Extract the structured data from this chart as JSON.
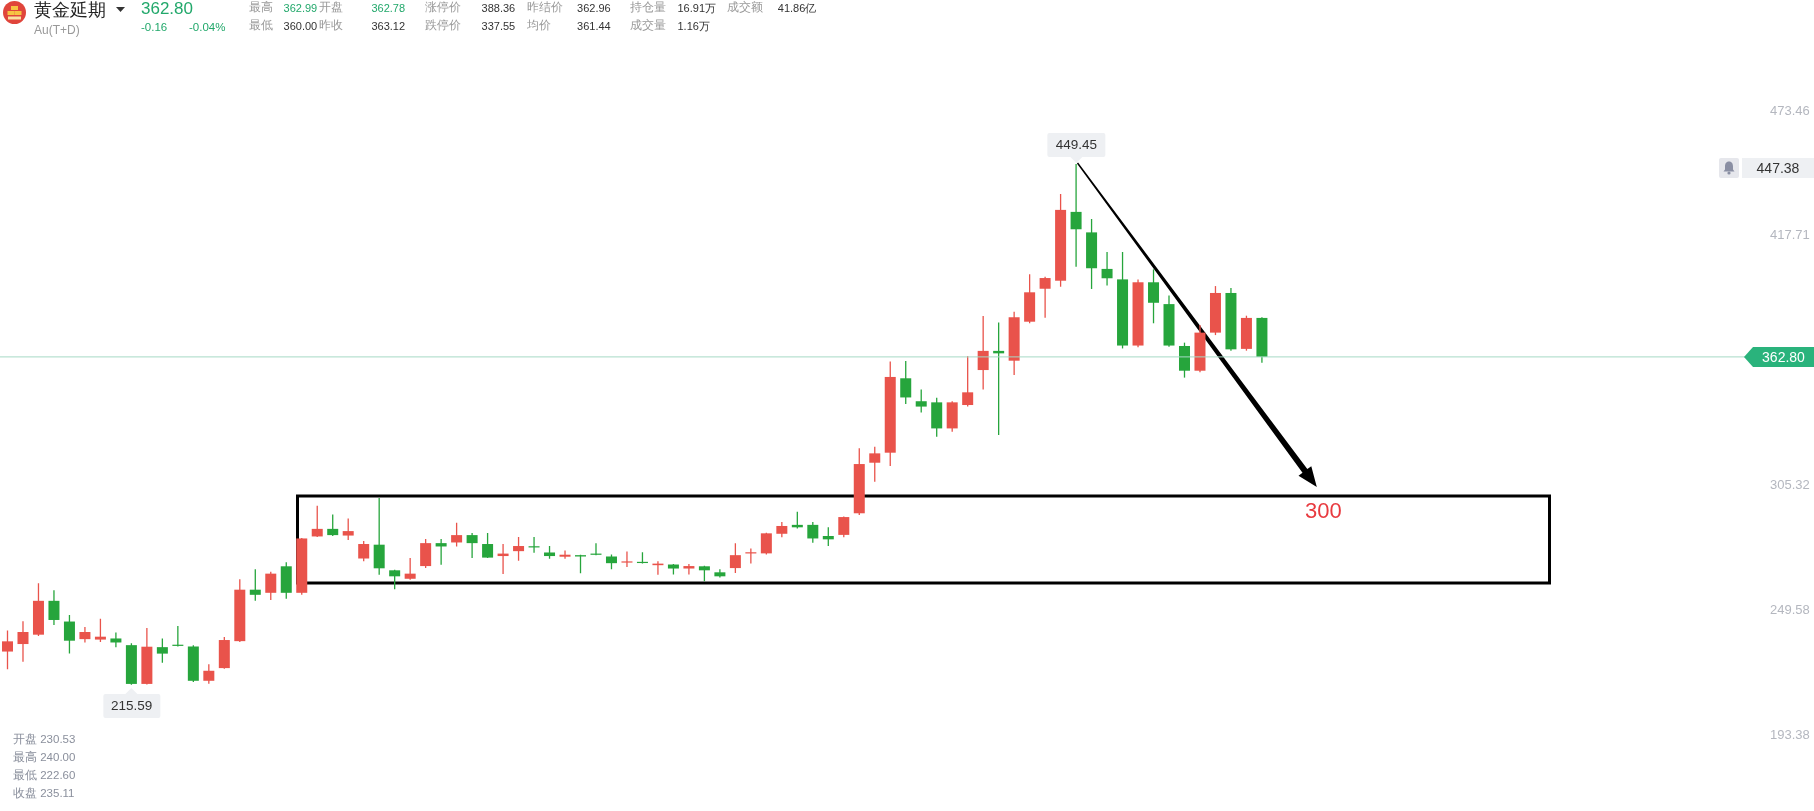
{
  "chart_data": {
    "type": "candlestick",
    "title": "黄金延期",
    "subtitle": "Au(T+D)",
    "categories": [
      null,
      null,
      null,
      null,
      null,
      null,
      null,
      null,
      null,
      null,
      null,
      null,
      null,
      null,
      null,
      null,
      null,
      null,
      null,
      null,
      null,
      null,
      null,
      null,
      null,
      null,
      null,
      null,
      null,
      null,
      null,
      null,
      null,
      null,
      null,
      null,
      null,
      null,
      null,
      null,
      null,
      null,
      null,
      null,
      null,
      null,
      null,
      null,
      null,
      null,
      null,
      null,
      null,
      null,
      null,
      null,
      null,
      null,
      null,
      null,
      null,
      null,
      null,
      null,
      null,
      null,
      null,
      null,
      null,
      null,
      null,
      null,
      null,
      null,
      null,
      null,
      null,
      null,
      null,
      null,
      null,
      null,
      null,
      null,
      null,
      null,
      null,
      null,
      null,
      null,
      null,
      null,
      null,
      null,
      null,
      null,
      null,
      null,
      null,
      null,
      null,
      null,
      null,
      null,
      null,
      null,
      null,
      null,
      null,
      null,
      null,
      null,
      null
    ],
    "ohlc": [
      [
        230.53,
        240.0,
        222.6,
        235.11
      ],
      [
        233.9,
        244.1,
        225.9,
        239.3
      ],
      [
        238.1,
        261.2,
        237.5,
        253.3
      ],
      [
        253.3,
        258.0,
        242.5,
        244.7
      ],
      [
        244.0,
        246.9,
        229.6,
        235.4
      ],
      [
        236.1,
        241.5,
        234.6,
        239.3
      ],
      [
        235.9,
        245.2,
        234.8,
        237.2
      ],
      [
        236.4,
        239.1,
        232.5,
        234.6
      ],
      [
        233.4,
        234.3,
        215.59,
        216.0
      ],
      [
        216.0,
        241.1,
        215.7,
        232.7
      ],
      [
        232.5,
        236.4,
        225.5,
        229.6
      ],
      [
        233.6,
        242.0,
        232.8,
        233.2
      ],
      [
        232.8,
        233.4,
        216.9,
        217.4
      ],
      [
        217.4,
        224.8,
        216.1,
        221.9
      ],
      [
        223.1,
        237.1,
        222.8,
        235.7
      ],
      [
        235.2,
        263.0,
        234.8,
        258.3
      ],
      [
        258.3,
        267.5,
        253.3,
        256.0
      ],
      [
        256.9,
        266.4,
        253.7,
        265.5
      ],
      [
        268.8,
        270.6,
        254.2,
        256.9
      ],
      [
        256.9,
        281.5,
        256.0,
        281.3
      ],
      [
        282.2,
        296.0,
        281.9,
        285.6
      ],
      [
        285.6,
        292.1,
        282.4,
        282.8
      ],
      [
        282.6,
        290.3,
        280.6,
        284.6
      ],
      [
        272.3,
        280.2,
        271.1,
        278.8
      ],
      [
        278.5,
        299.5,
        265.0,
        267.9
      ],
      [
        267.0,
        267.3,
        258.5,
        264.3
      ],
      [
        263.2,
        272.5,
        262.8,
        265.5
      ],
      [
        268.9,
        281.0,
        268.0,
        279.2
      ],
      [
        279.2,
        281.0,
        269.5,
        277.7
      ],
      [
        279.5,
        288.3,
        277.7,
        282.8
      ],
      [
        282.8,
        283.7,
        272.5,
        279.2
      ],
      [
        278.8,
        283.8,
        272.5,
        272.7
      ],
      [
        273.4,
        278.8,
        265.3,
        274.5
      ],
      [
        275.6,
        281.9,
        271.3,
        277.9
      ],
      [
        277.8,
        281.9,
        274.9,
        277.5
      ],
      [
        275.0,
        277.9,
        272.2,
        273.4
      ],
      [
        273.1,
        275.9,
        272.2,
        274.0
      ],
      [
        273.8,
        274.0,
        265.7,
        273.2
      ],
      [
        274.5,
        279.2,
        273.8,
        274.0
      ],
      [
        273.2,
        274.1,
        267.5,
        270.2
      ],
      [
        270.6,
        275.4,
        268.5,
        271.0
      ],
      [
        270.8,
        275.1,
        270.1,
        270.6
      ],
      [
        269.3,
        271.1,
        265.0,
        270.0
      ],
      [
        269.6,
        269.8,
        265.1,
        267.8
      ],
      [
        267.8,
        269.8,
        265.1,
        268.9
      ],
      [
        268.8,
        269.1,
        262.1,
        267.0
      ],
      [
        266.1,
        267.5,
        263.8,
        264.3
      ],
      [
        268.0,
        279.1,
        265.8,
        273.8
      ],
      [
        274.7,
        276.8,
        270.1,
        275.1
      ],
      [
        274.6,
        283.9,
        274.1,
        283.6
      ],
      [
        283.4,
        288.7,
        281.8,
        286.9
      ],
      [
        287.4,
        293.3,
        285.8,
        286.3
      ],
      [
        287.4,
        288.7,
        279.4,
        281.3
      ],
      [
        282.4,
        286.3,
        277.9,
        280.9
      ],
      [
        282.9,
        291.1,
        281.8,
        290.9
      ],
      [
        292.6,
        321.8,
        291.8,
        314.7
      ],
      [
        315.3,
        322.5,
        306.8,
        319.5
      ],
      [
        319.8,
        360.7,
        313.8,
        353.8
      ],
      [
        353.2,
        361.0,
        341.7,
        344.6
      ],
      [
        342.9,
        348.2,
        337.8,
        340.5
      ],
      [
        342.4,
        344.5,
        327.0,
        330.7
      ],
      [
        330.7,
        342.9,
        329.2,
        342.4
      ],
      [
        341.2,
        363.2,
        340.5,
        346.9
      ],
      [
        356.9,
        381.2,
        348.2,
        365.5
      ],
      [
        365.5,
        378.2,
        327.7,
        364.4
      ],
      [
        361.1,
        383.1,
        354.7,
        380.6
      ],
      [
        378.6,
        399.9,
        377.9,
        391.8
      ],
      [
        393.4,
        398.8,
        380.4,
        398.2
      ],
      [
        397.0,
        435.9,
        394.3,
        428.8
      ],
      [
        427.9,
        449.45,
        403.3,
        420.1
      ],
      [
        418.7,
        424.7,
        393.3,
        402.6
      ],
      [
        402.3,
        409.9,
        394.8,
        398.1
      ],
      [
        397.6,
        409.9,
        366.6,
        367.9
      ],
      [
        367.9,
        397.6,
        367.1,
        396.3
      ],
      [
        396.3,
        402.1,
        377.9,
        387.1
      ],
      [
        386.5,
        390.4,
        367.4,
        367.9
      ],
      [
        367.7,
        369.2,
        353.5,
        356.6
      ],
      [
        356.6,
        377.1,
        355.9,
        373.7
      ],
      [
        373.7,
        394.6,
        372.6,
        391.5
      ],
      [
        391.5,
        393.7,
        365.6,
        366.2
      ],
      [
        366.4,
        381.3,
        365.6,
        380.3
      ],
      [
        380.3,
        380.6,
        360.2,
        362.8
      ],
      null,
      null,
      null,
      null,
      null,
      null,
      null,
      null,
      null,
      null,
      null,
      null,
      null,
      null,
      null,
      null,
      null,
      null,
      null,
      null,
      null,
      null,
      null,
      null,
      null,
      null,
      null,
      null,
      null,
      null,
      null
    ],
    "colors": [
      "#e9534b",
      "#e9534b",
      "#e9534b",
      "#26a53c",
      "#26a53c",
      "#e9534b",
      "#e9534b",
      "#26a53c",
      "#26a53c",
      "#e9534b",
      "#26a53c",
      "#26a53c",
      "#26a53c",
      "#e9534b",
      "#e9534b",
      "#e9534b",
      "#26a53c",
      "#e9534b",
      "#26a53c",
      "#e9534b",
      "#e9534b",
      "#26a53c",
      "#e9534b",
      "#e9534b",
      "#26a53c",
      "#26a53c",
      "#e9534b",
      "#e9534b",
      "#26a53c",
      "#e9534b",
      "#26a53c",
      "#26a53c",
      "#e9534b",
      "#e9534b",
      "#26a53c",
      "#26a53c",
      "#e9534b",
      "#26a53c",
      "#26a53c",
      "#26a53c",
      "#e9534b",
      "#26a53c",
      "#e9534b",
      "#26a53c",
      "#e9534b",
      "#26a53c",
      "#26a53c",
      "#e9534b",
      "#e9534b",
      "#e9534b",
      "#e9534b",
      "#26a53c",
      "#26a53c",
      "#26a53c",
      "#e9534b",
      "#e9534b",
      "#e9534b",
      "#e9534b",
      "#26a53c",
      "#26a53c",
      "#26a53c",
      "#e9534b",
      "#e9534b",
      "#e9534b",
      "#26a53c",
      "#e9534b",
      "#e9534b",
      "#e9534b",
      "#e9534b",
      "#26a53c",
      "#26a53c",
      "#26a53c",
      "#26a53c",
      "#e9534b",
      "#26a53c",
      "#26a53c",
      "#26a53c",
      "#e9534b",
      "#e9534b",
      "#26a53c",
      "#e9534b",
      "#26a53c",
      null,
      null,
      null,
      null,
      null,
      null,
      null,
      null,
      null,
      null,
      null,
      null,
      null,
      null,
      null,
      null,
      null,
      null,
      null,
      null,
      null,
      null,
      null,
      null,
      null,
      null,
      null,
      null,
      null,
      null,
      null
    ],
    "ylim": [
      193.38,
      473.46
    ],
    "yticks": [
      193.38,
      249.58,
      305.32,
      417.71,
      473.46
    ],
    "tick_labels": "y",
    "ref_lines": [
      {
        "axis": "y",
        "value": 362.8,
        "label": "362.80",
        "color": "#a6d9c5"
      }
    ],
    "annotations": [
      "362.80",
      "-0.16",
      "-0.04%",
      "最高",
      "362.99",
      "开盘",
      "362.78",
      "涨停价",
      "388.36",
      "昨结价",
      "362.96",
      "持仓量",
      "16.91万",
      "成交额",
      "41.86亿",
      "最低",
      "360.00",
      "昨收",
      "363.12",
      "跌停价",
      "337.55",
      "均价",
      "361.44",
      "成交量",
      "1.16万",
      "开盘 230.53",
      "最高 240.00",
      "最低 222.60",
      "收盘 235.11",
      "449.45",
      "215.59",
      "447.38",
      "300"
    ]
  }
}
